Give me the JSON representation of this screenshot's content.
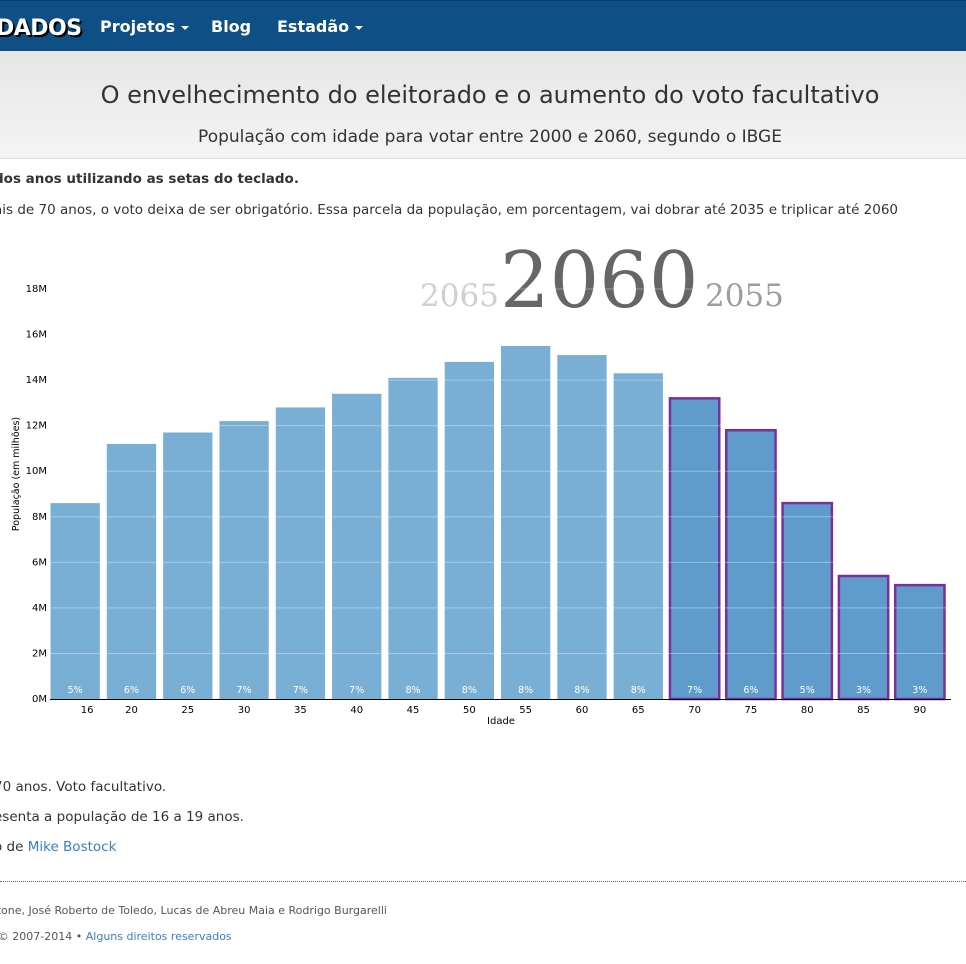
{
  "nav": {
    "brand": "DADOS",
    "items": [
      {
        "label": "Projetos",
        "dropdown": true
      },
      {
        "label": "Blog",
        "dropdown": false
      },
      {
        "label": "Estadão",
        "dropdown": true
      }
    ]
  },
  "header": {
    "title": "O envelhecimento do eleitorado e o aumento do voto facultativo",
    "subtitle": "População com idade para votar entre 2000 e 2060, segundo o IBGE"
  },
  "intro": {
    "instruction": "dos anos utilizando as setas do teclado.",
    "description": "ais de 70 anos, o voto deixa de ser obrigatório. Essa parcela da população, em porcentagem, vai dobrar até 2035 e triplicar até 2060"
  },
  "years": {
    "previous": "2065",
    "current": "2060",
    "next": "2055"
  },
  "notes": {
    "line1": "70 anos. Voto facultativo.",
    "line2": "esenta a população de 16 a 19 anos.",
    "line3_prefix": "o de ",
    "line3_link": "Mike Bostock"
  },
  "footer": {
    "credits": "atone, José Roberto de Toledo, Lucas de Abreu Maia e Rodrigo Burgarelli",
    "copyright_prefix": "t © 2007-2014 •",
    "copyright_link": "Alguns direitos reservados"
  },
  "colors": {
    "bar": "#7aafd5",
    "bar_optional": "#5f9ccb",
    "optional_stroke": "#7b2f9e",
    "navbar": "#0e4f86"
  },
  "chart_data": {
    "type": "bar",
    "xlabel": "Idade",
    "ylabel": "População (em milhões)",
    "ylim": [
      0,
      18
    ],
    "yticks": [
      "0M",
      "2M",
      "4M",
      "6M",
      "8M",
      "10M",
      "12M",
      "14M",
      "16M",
      "18M"
    ],
    "categories": [
      "16",
      "20",
      "25",
      "30",
      "35",
      "40",
      "45",
      "50",
      "55",
      "60",
      "65",
      "70",
      "75",
      "80",
      "85",
      "90"
    ],
    "values": [
      8.6,
      11.2,
      11.7,
      12.2,
      12.8,
      13.4,
      14.1,
      14.8,
      15.5,
      15.1,
      14.3,
      13.2,
      11.8,
      8.6,
      5.4,
      5.0
    ],
    "percent_labels": [
      "5%",
      "6%",
      "6%",
      "7%",
      "7%",
      "7%",
      "8%",
      "8%",
      "8%",
      "8%",
      "8%",
      "7%",
      "6%",
      "5%",
      "3%",
      "3%"
    ],
    "optional_vote_from_index": 11,
    "grid": true
  }
}
